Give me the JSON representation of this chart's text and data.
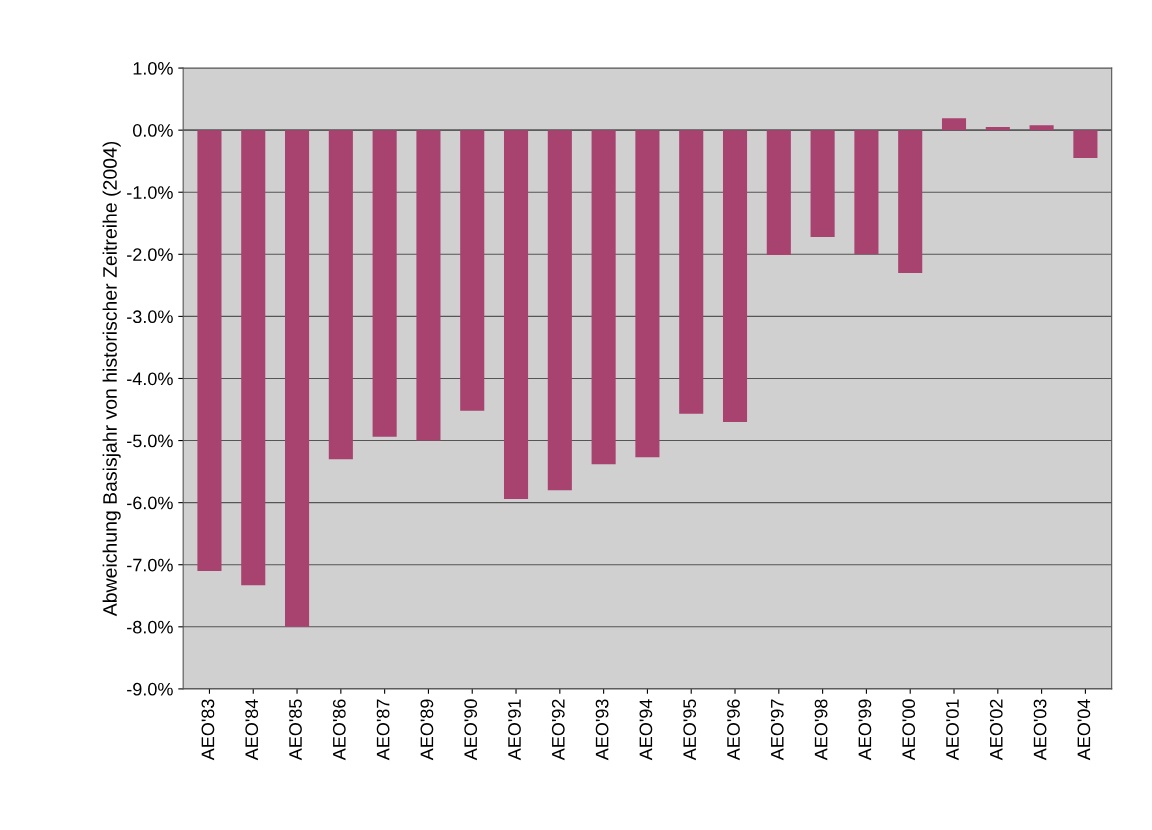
{
  "chart_data": {
    "type": "bar",
    "ylabel": "Abweichung Basisjahr von historischer Zeitreihe (2004)",
    "categories": [
      "AEO'83",
      "AEO'84",
      "AEO'85",
      "AEO'86",
      "AEO'87",
      "AEO'89",
      "AEO'90",
      "AEO'91",
      "AEO'92",
      "AEO'93",
      "AEO'94",
      "AEO'95",
      "AEO'96",
      "AEO'97",
      "AEO'98",
      "AEO'99",
      "AEO'00",
      "AEO'01",
      "AEO'02",
      "AEO'03",
      "AEO'04"
    ],
    "values": [
      -7.1,
      -7.33,
      -8.0,
      -5.3,
      -4.94,
      -5.0,
      -4.52,
      -5.94,
      -5.8,
      -5.38,
      -5.27,
      -4.57,
      -4.7,
      -2.01,
      -1.72,
      -2.0,
      -2.3,
      0.19,
      0.05,
      0.08,
      -0.45
    ],
    "color": "#a8426f",
    "ylim": [
      -9,
      1
    ],
    "yticks": [
      {
        "value": 1,
        "label": "1.0%"
      },
      {
        "value": 0,
        "label": "0.0%"
      },
      {
        "value": -1,
        "label": "-1.0%"
      },
      {
        "value": -2,
        "label": "-2.0%"
      },
      {
        "value": -3,
        "label": "-3.0%"
      },
      {
        "value": -4,
        "label": "-4.0%"
      },
      {
        "value": -5,
        "label": "-5.0%"
      },
      {
        "value": -6,
        "label": "-6.0%"
      },
      {
        "value": -7,
        "label": "-7.0%"
      },
      {
        "value": -8,
        "label": "-8.0%"
      },
      {
        "value": -9,
        "label": "-9.0%"
      }
    ],
    "grid": "y"
  }
}
